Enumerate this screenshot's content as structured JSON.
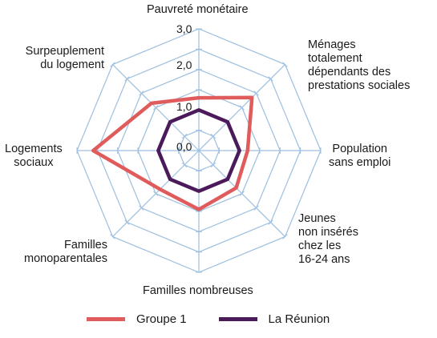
{
  "chart_data": {
    "type": "radar",
    "axes": [
      "Pauvreté monétaire",
      "Ménages\ntotalement\ndépendants des\nprestations sociales",
      "Population\nsans emploi",
      "Jeunes\nnon insérés\nchez les\n16-24 ans",
      "Familles nombreuses",
      "Familles\nmonoparentales",
      "Logements\nsociaux",
      "Surpeuplement\ndu logement"
    ],
    "ticks": [
      "0,0",
      "1,0",
      "2,0",
      "3,0"
    ],
    "rlim": [
      0,
      3
    ],
    "grid": true,
    "series": [
      {
        "name": "Groupe 1",
        "color": "#e05c5c",
        "values": [
          1.3,
          1.85,
          1.2,
          1.3,
          1.45,
          1.35,
          2.6,
          1.65
        ]
      },
      {
        "name": "La Réunion",
        "color": "#4b1a5a",
        "values": [
          1.0,
          1.0,
          1.0,
          1.0,
          1.0,
          1.0,
          1.0,
          1.0
        ]
      }
    ],
    "legend_position": "bottom"
  }
}
